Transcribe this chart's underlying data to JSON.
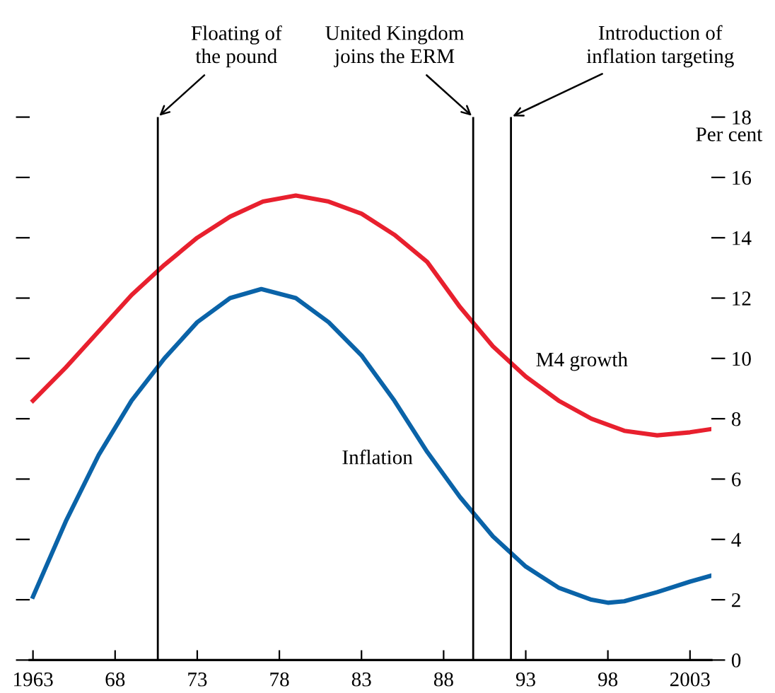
{
  "chart_data": {
    "type": "line",
    "ylabel": "Per cent",
    "xlim": [
      1962.8,
      2004.3
    ],
    "xticks": [
      {
        "value": 1963,
        "label": "1963"
      },
      {
        "value": 1968,
        "label": "68"
      },
      {
        "value": 1973,
        "label": "73"
      },
      {
        "value": 1978,
        "label": "78"
      },
      {
        "value": 1983,
        "label": "83"
      },
      {
        "value": 1988,
        "label": "88"
      },
      {
        "value": 1993,
        "label": "93"
      },
      {
        "value": 1998,
        "label": "98"
      },
      2003
    ],
    "ylim": [
      0,
      18
    ],
    "yticks": [
      0,
      2,
      4,
      6,
      8,
      10,
      12,
      14,
      16,
      18
    ],
    "grid": false,
    "legend": false,
    "marker": "none",
    "line_style": "solid",
    "series": [
      {
        "name": "M4 growth",
        "color": "#e8202e",
        "x": [
          1963,
          1965,
          1967,
          1969,
          1971,
          1973,
          1975,
          1977,
          1979,
          1981,
          1983,
          1985,
          1987,
          1989,
          1991,
          1993,
          1995,
          1997,
          1999,
          2001,
          2003,
          2004.2
        ],
        "values": [
          8.6,
          9.7,
          10.9,
          12.1,
          13.1,
          14.0,
          14.7,
          15.2,
          15.4,
          15.2,
          14.8,
          14.1,
          13.2,
          11.7,
          10.4,
          9.4,
          8.6,
          8.0,
          7.6,
          7.45,
          7.55,
          7.65
        ]
      },
      {
        "name": "Inflation",
        "color": "#0a63a8",
        "x": [
          1963,
          1965,
          1967,
          1969,
          1971,
          1973,
          1975,
          1976.9,
          1979,
          1981,
          1983,
          1985,
          1987,
          1989,
          1991,
          1993,
          1995,
          1997,
          1998,
          1999,
          2001,
          2003,
          2004.3
        ],
        "values": [
          2.1,
          4.6,
          6.8,
          8.6,
          10.0,
          11.2,
          12.0,
          12.3,
          12.0,
          11.2,
          10.1,
          8.6,
          6.9,
          5.4,
          4.1,
          3.1,
          2.4,
          2.0,
          1.9,
          1.95,
          2.25,
          2.6,
          2.8
        ]
      }
    ],
    "ref_lines": [
      {
        "axis": "x",
        "value": 1970.6,
        "label": "Floating of\nthe pound",
        "color": "#000000"
      },
      {
        "axis": "x",
        "value": 1989.8,
        "label": "United Kingdom\njoins the ERM",
        "color": "#000000"
      },
      {
        "axis": "x",
        "value": 1992.1,
        "label": "Introduction of\ninflation targeting",
        "color": "#000000"
      }
    ]
  }
}
